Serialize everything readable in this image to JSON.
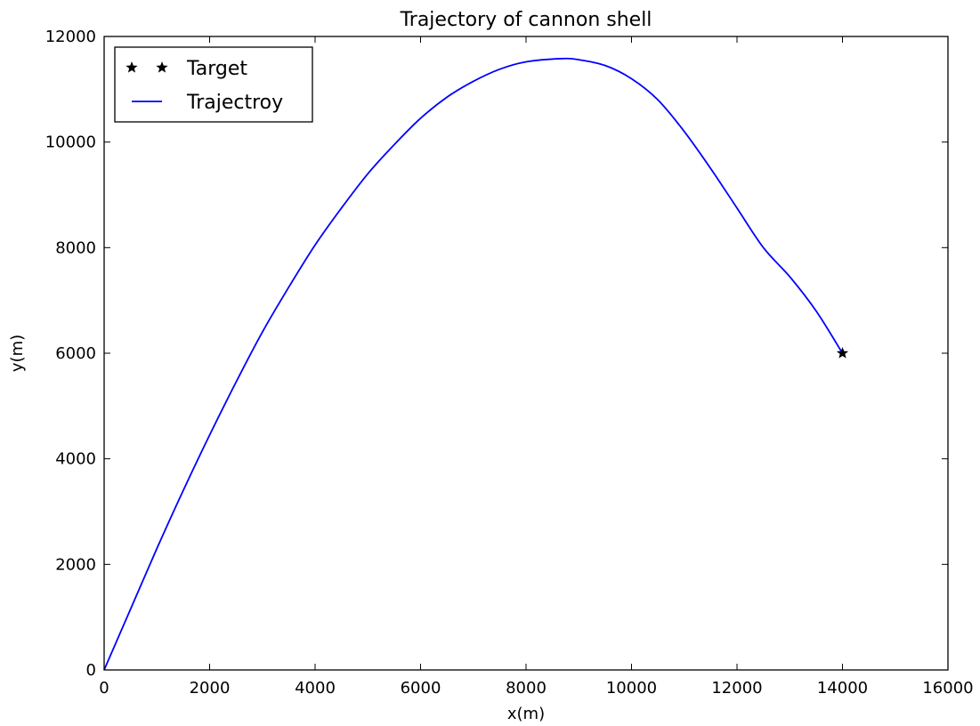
{
  "chart_data": {
    "type": "line",
    "title": "Trajectory of cannon shell",
    "xlabel": "x(m)",
    "ylabel": "y(m)",
    "xlim": [
      0,
      16000
    ],
    "ylim": [
      0,
      12000
    ],
    "xticks": [
      0,
      2000,
      4000,
      6000,
      8000,
      10000,
      12000,
      14000,
      16000
    ],
    "yticks": [
      0,
      2000,
      4000,
      6000,
      8000,
      10000,
      12000
    ],
    "grid": false,
    "legend_position": "top-left",
    "series": [
      {
        "name": "Trajectroy",
        "kind": "line",
        "color": "#0000ff",
        "x": [
          0,
          500,
          1000,
          1500,
          2000,
          2500,
          3000,
          3500,
          4000,
          4500,
          5000,
          5500,
          6000,
          6500,
          7000,
          7500,
          8000,
          8650,
          9000,
          9500,
          10000,
          10500,
          11000,
          11500,
          12000,
          12500,
          13000,
          13500,
          14000
        ],
        "y": [
          0,
          1150,
          2300,
          3400,
          4450,
          5450,
          6400,
          7250,
          8050,
          8750,
          9400,
          9950,
          10450,
          10850,
          11150,
          11380,
          11520,
          11580,
          11560,
          11450,
          11200,
          10800,
          10200,
          9500,
          8750,
          8000,
          7450,
          6800,
          6000
        ]
      },
      {
        "name": "Target",
        "kind": "marker",
        "marker": "star",
        "color": "#000000",
        "x": [
          14000
        ],
        "y": [
          6000
        ]
      }
    ]
  }
}
